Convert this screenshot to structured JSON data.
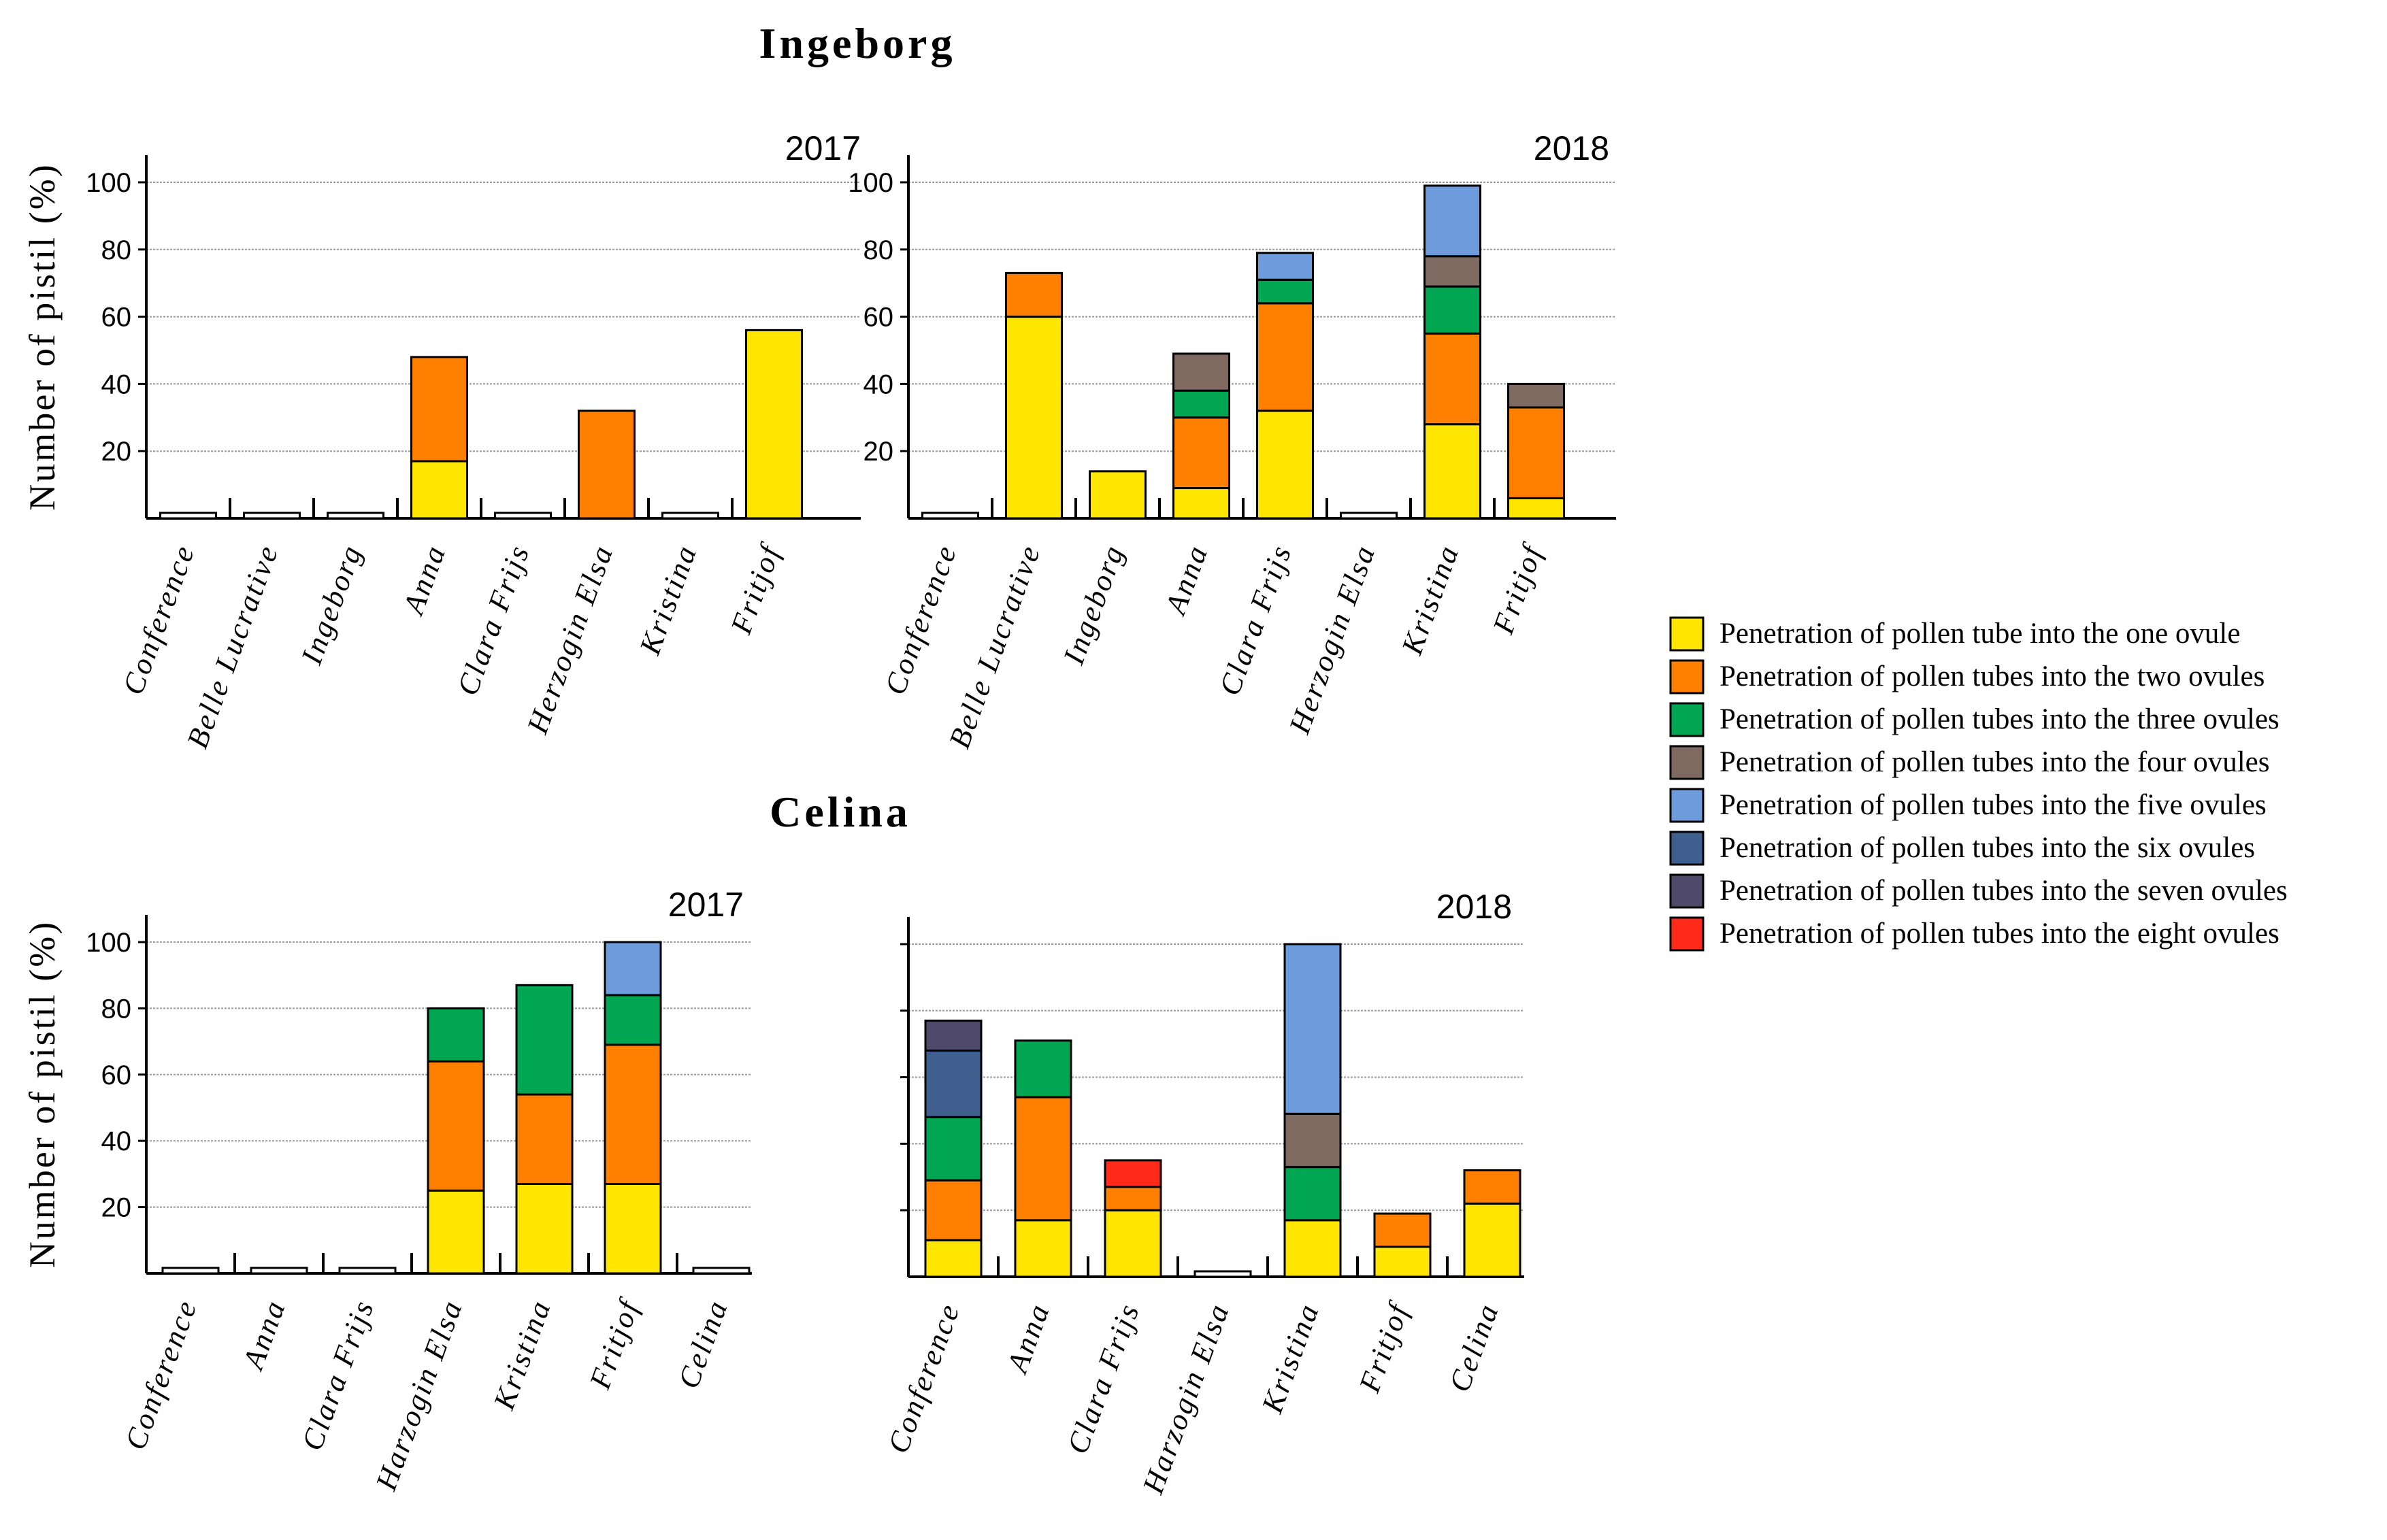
{
  "colors": {
    "one": "#FFE600",
    "two": "#FF7F00",
    "three": "#00A651",
    "four": "#7F6A61",
    "five": "#6D9BDB",
    "six": "#3F5F8F",
    "seven": "#4F4A6A",
    "eight": "#FF2A1A"
  },
  "chart_data": [
    {
      "type": "bar",
      "stacked": true,
      "group_title": "Ingeborg",
      "title": "2017",
      "ylabel": "Number of pistil (%)",
      "yticks": [
        20,
        40,
        60,
        80,
        100
      ],
      "ylim": [
        0,
        105
      ],
      "categories": [
        "Conference",
        "Belle Lucrative",
        "Ingeborg",
        "Anna",
        "Clara Frijs",
        "Herzogin Elsa",
        "Kristina",
        "Fritjof"
      ],
      "series": [
        {
          "key": "one",
          "name": "Penetration of pollen tube into the one ovule",
          "values": [
            0,
            0,
            0,
            17,
            0,
            0,
            0,
            56
          ]
        },
        {
          "key": "two",
          "name": "Penetration of pollen tubes into the two ovules",
          "values": [
            0,
            0,
            0,
            31,
            0,
            32,
            0,
            0
          ]
        }
      ]
    },
    {
      "type": "bar",
      "stacked": true,
      "group_title": "Ingeborg",
      "title": "2018",
      "ylabel": "",
      "yticks": [
        20,
        40,
        60,
        80,
        100
      ],
      "ylim": [
        0,
        105
      ],
      "categories": [
        "Conference",
        "Belle Lucrative",
        "Ingeborg",
        "Anna",
        "Clara Frijs",
        "Herzogin Elsa",
        "Kristina",
        "Fritjof"
      ],
      "series": [
        {
          "key": "one",
          "name": "Penetration of pollen tube into the one ovule",
          "values": [
            0,
            60,
            14,
            9,
            32,
            0,
            28,
            6
          ]
        },
        {
          "key": "two",
          "name": "Penetration of pollen tubes into the two ovules",
          "values": [
            0,
            13,
            0,
            21,
            32,
            0,
            27,
            27
          ]
        },
        {
          "key": "three",
          "name": "Penetration of pollen tubes into the three ovules",
          "values": [
            0,
            0,
            0,
            8,
            7,
            0,
            14,
            0
          ]
        },
        {
          "key": "four",
          "name": "Penetration of pollen tubes into the four ovules",
          "values": [
            0,
            0,
            0,
            11,
            0,
            0,
            9,
            7
          ]
        },
        {
          "key": "five",
          "name": "Penetration of pollen tubes into the five ovules",
          "values": [
            0,
            0,
            0,
            0,
            8,
            0,
            21,
            0
          ]
        }
      ]
    },
    {
      "type": "bar",
      "stacked": true,
      "group_title": "Celina",
      "title": "2017",
      "ylabel": "Number of pistil (%)",
      "yticks": [
        20,
        40,
        60,
        80,
        100
      ],
      "ylim": [
        0,
        105
      ],
      "categories": [
        "Conference",
        "Anna",
        "Clara Frijs",
        "Harzogin Elsa",
        "Kristina",
        "Fritjof",
        "Celina"
      ],
      "series": [
        {
          "key": "one",
          "name": "Penetration of pollen tube into the one ovule",
          "values": [
            0,
            0,
            0,
            25,
            27,
            27,
            0
          ]
        },
        {
          "key": "two",
          "name": "Penetration of pollen tubes into the two ovules",
          "values": [
            0,
            0,
            0,
            39,
            27,
            42,
            0
          ]
        },
        {
          "key": "three",
          "name": "Penetration of pollen tubes into the three ovules",
          "values": [
            0,
            0,
            0,
            16,
            33,
            15,
            0
          ]
        },
        {
          "key": "five",
          "name": "Penetration of pollen tubes into the five ovules",
          "values": [
            0,
            0,
            0,
            0,
            0,
            16,
            0
          ]
        }
      ]
    },
    {
      "type": "bar",
      "stacked": true,
      "group_title": "Celina",
      "title": "2018",
      "ylabel": "",
      "yticks": [
        20,
        40,
        60,
        80,
        100
      ],
      "ylim": [
        0,
        105
      ],
      "hide_ytick_labels": true,
      "categories": [
        "Conference",
        "Anna",
        "Clara Frijs",
        "Harzogin Elsa",
        "Kristina",
        "Fritjof",
        "Celina"
      ],
      "series": [
        {
          "key": "one",
          "name": "Penetration of pollen tube into the one ovule",
          "values": [
            11,
            17,
            20,
            0,
            17,
            9,
            22
          ]
        },
        {
          "key": "two",
          "name": "Penetration of pollen tubes into the two ovules",
          "values": [
            18,
            37,
            7,
            0,
            0,
            10,
            10
          ]
        },
        {
          "key": "three",
          "name": "Penetration of pollen tubes into the three ovules",
          "values": [
            19,
            17,
            0,
            0,
            16,
            0,
            0
          ]
        },
        {
          "key": "four",
          "name": "Penetration of pollen tubes into the four ovules",
          "values": [
            0,
            0,
            0,
            0,
            16,
            0,
            0
          ]
        },
        {
          "key": "five",
          "name": "Penetration of pollen tubes into the five ovules",
          "values": [
            0,
            0,
            0,
            0,
            51,
            0,
            0
          ]
        },
        {
          "key": "six",
          "name": "Penetration of pollen tubes into the six ovules",
          "values": [
            20,
            0,
            0,
            0,
            0,
            0,
            0
          ]
        },
        {
          "key": "seven",
          "name": "Penetration of pollen tubes into the seven ovules",
          "values": [
            9,
            0,
            0,
            0,
            0,
            0,
            0
          ]
        },
        {
          "key": "eight",
          "name": "Penetration of pollen tubes into the eight ovules",
          "values": [
            0,
            0,
            8,
            0,
            0,
            0,
            0
          ]
        }
      ]
    }
  ],
  "legend": {
    "entries": [
      {
        "key": "one",
        "label": "Penetration of pollen tube into the one ovule"
      },
      {
        "key": "two",
        "label": "Penetration of pollen tubes into the two ovules"
      },
      {
        "key": "three",
        "label": "Penetration of pollen tubes into the three ovules"
      },
      {
        "key": "four",
        "label": "Penetration of pollen tubes into the four ovules"
      },
      {
        "key": "five",
        "label": "Penetration of pollen tubes into the five ovules"
      },
      {
        "key": "six",
        "label": "Penetration of pollen tubes into the six ovules"
      },
      {
        "key": "seven",
        "label": "Penetration of pollen tubes into the seven ovules"
      },
      {
        "key": "eight",
        "label": "Penetration of pollen tubes into the eight ovules"
      }
    ]
  }
}
